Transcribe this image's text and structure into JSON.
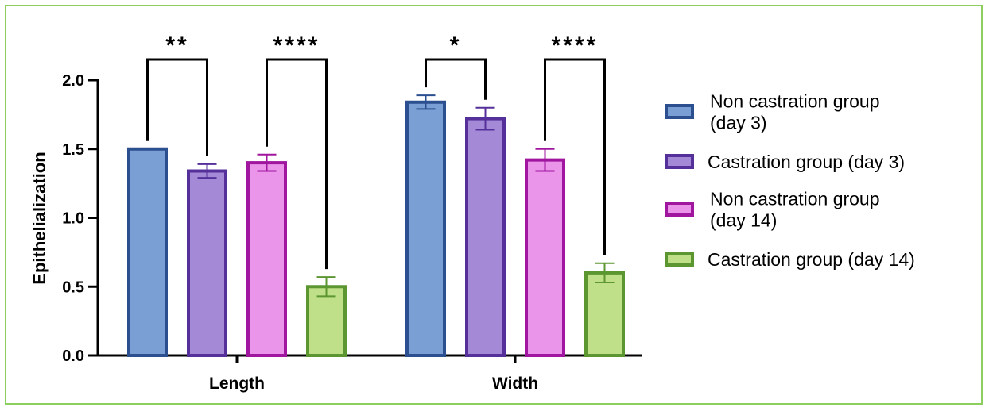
{
  "chart_data": {
    "type": "bar",
    "ylabel": "Epithelialization",
    "ylim": [
      0,
      2.0
    ],
    "yticks": [
      "0.0",
      "0.5",
      "1.0",
      "1.5",
      "2.0"
    ],
    "categories": [
      "Length",
      "Width"
    ],
    "series": [
      {
        "name": "Non castration group (day 3)",
        "legend_lines": [
          "Non castration group",
          "(day 3)"
        ],
        "fill": "#7a9fd4",
        "stroke": "#2b4f8f",
        "values": [
          1.5,
          1.84
        ],
        "errors": [
          0.0,
          0.05
        ]
      },
      {
        "name": "Castration group (day 3)",
        "legend_lines": [
          "Castration group (day 3)"
        ],
        "fill": "#a48ad6",
        "stroke": "#55309a",
        "values": [
          1.34,
          1.72
        ],
        "errors": [
          0.05,
          0.08
        ]
      },
      {
        "name": "Non castration group (day 14)",
        "legend_lines": [
          "Non castration group",
          "(day 14)"
        ],
        "fill": "#ea94ea",
        "stroke": "#a0169e",
        "values": [
          1.4,
          1.42
        ],
        "errors": [
          0.06,
          0.08
        ]
      },
      {
        "name": "Castration group (day 14)",
        "legend_lines": [
          "Castration group (day 14)"
        ],
        "fill": "#bfdf88",
        "stroke": "#5c9630",
        "values": [
          0.5,
          0.6
        ],
        "errors": [
          0.07,
          0.07
        ]
      }
    ],
    "significance": [
      {
        "category": 0,
        "from": 0,
        "to": 1,
        "label": "**"
      },
      {
        "category": 0,
        "from": 2,
        "to": 3,
        "label": "****"
      },
      {
        "category": 1,
        "from": 0,
        "to": 1,
        "label": "*"
      },
      {
        "category": 1,
        "from": 2,
        "to": 3,
        "label": "****"
      }
    ],
    "legend_position": "right"
  }
}
